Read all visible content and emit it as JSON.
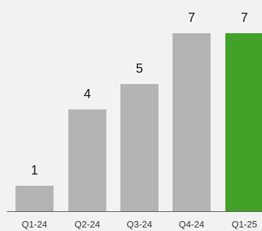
{
  "chart_data": {
    "type": "bar",
    "categories": [
      "Q1-24",
      "Q2-24",
      "Q3-24",
      "Q4-24",
      "Q1-25"
    ],
    "values": [
      1,
      4,
      5,
      7,
      7
    ],
    "title": "",
    "xlabel": "",
    "ylabel": "",
    "ylim": [
      0,
      7
    ],
    "grid": false,
    "legend": "none",
    "data_labels": [
      "1",
      "4",
      "5",
      "7",
      "7"
    ],
    "highlight_index": 4
  },
  "colors": {
    "background": "#f2f2f2",
    "bar": "#b3b3b3",
    "highlight": "#41a128",
    "axis": "#555555"
  }
}
